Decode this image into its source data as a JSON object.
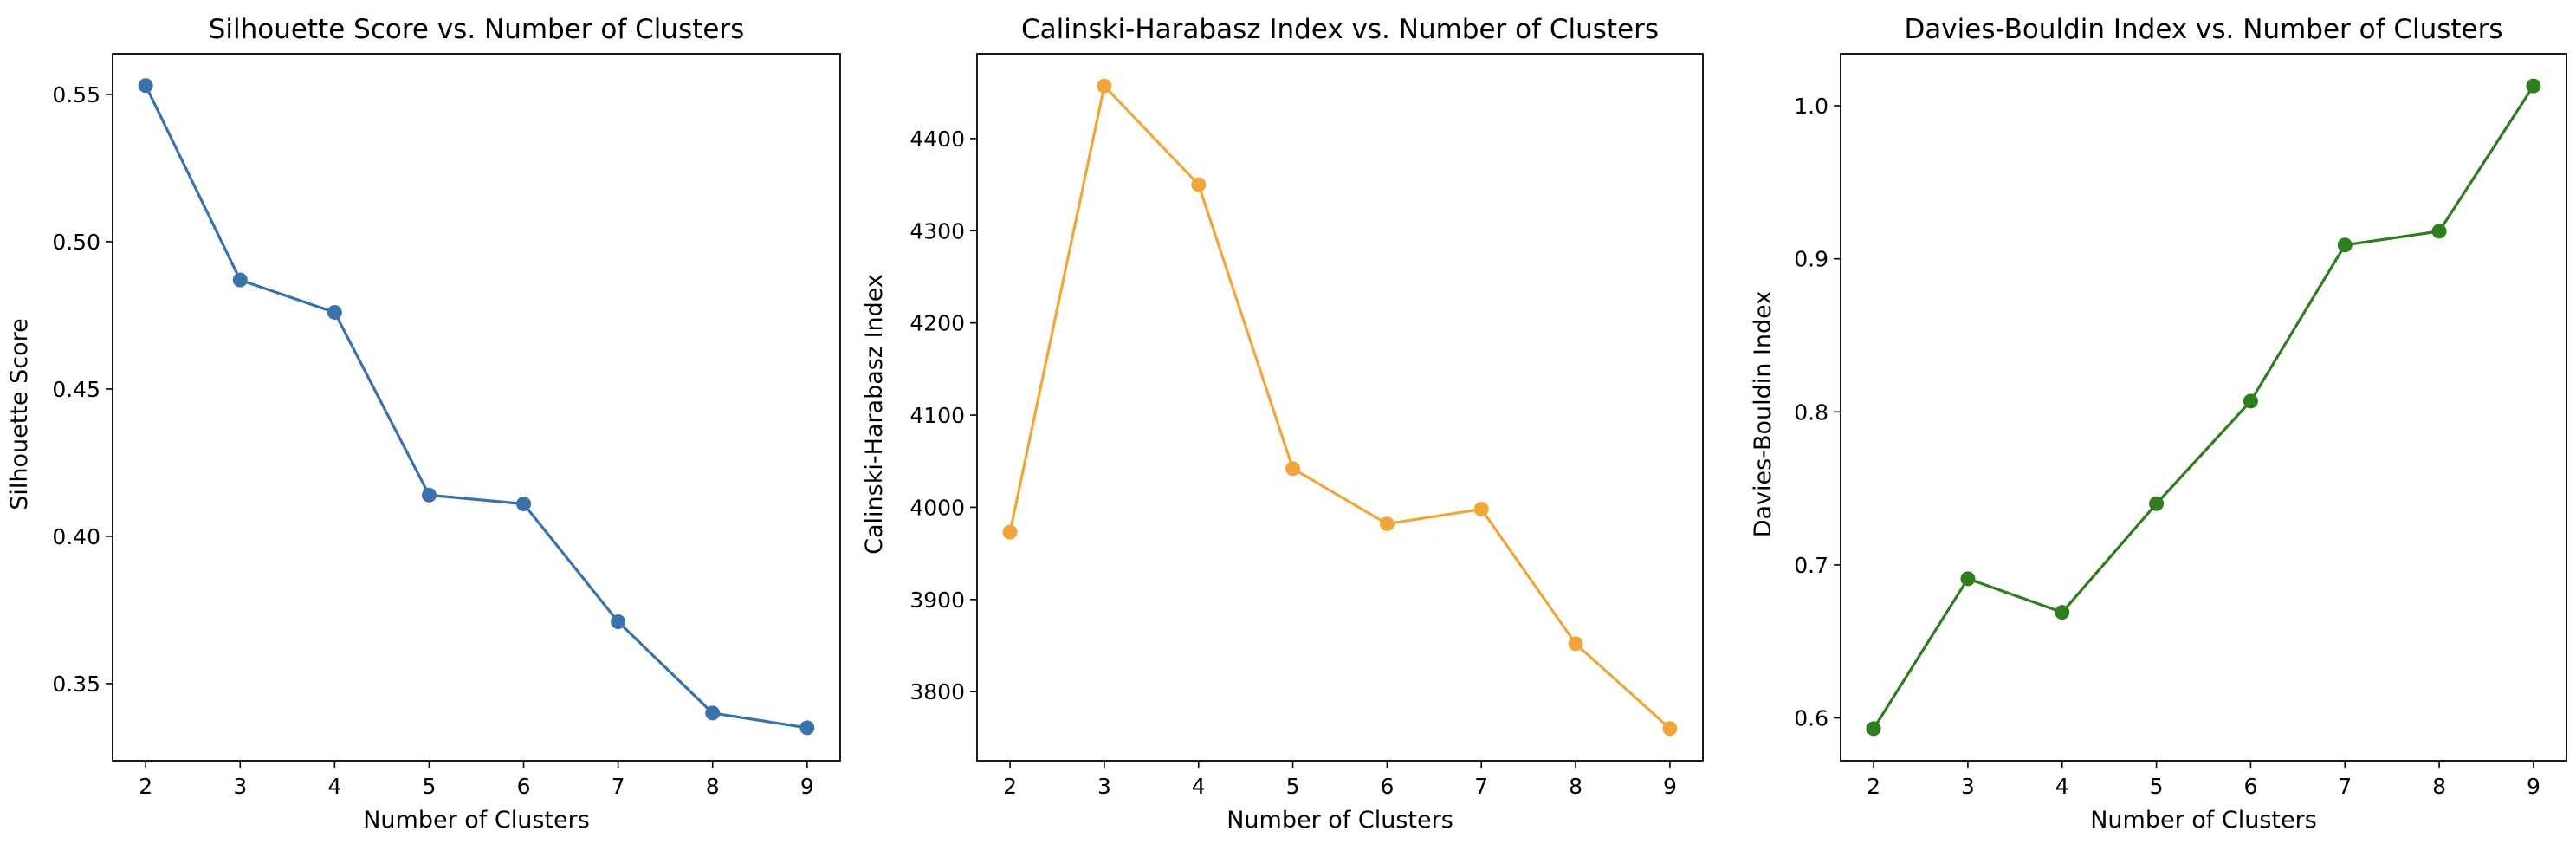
{
  "chart_data": [
    {
      "type": "line",
      "title": "Silhouette Score vs. Number of Clusters",
      "xlabel": "Number of Clusters",
      "ylabel": "Silhouette Score",
      "x": [
        2,
        3,
        4,
        5,
        6,
        7,
        8,
        9
      ],
      "y": [
        0.553,
        0.487,
        0.476,
        0.414,
        0.411,
        0.371,
        0.34,
        0.335
      ],
      "xlim": [
        1.65,
        9.35
      ],
      "ylim": [
        0.3238,
        0.5638
      ],
      "xticks": [
        2,
        3,
        4,
        5,
        6,
        7,
        8,
        9
      ],
      "yticks": [
        0.35,
        0.4,
        0.45,
        0.5,
        0.55
      ],
      "ytick_labels": [
        "0.35",
        "0.40",
        "0.45",
        "0.50",
        "0.55"
      ],
      "color": "#3a72ab",
      "grid": false,
      "marker": "circle"
    },
    {
      "type": "line",
      "title": "Calinski-Harabasz Index vs. Number of Clusters",
      "xlabel": "Number of Clusters",
      "ylabel": "Calinski-Harabasz Index",
      "x": [
        2,
        3,
        4,
        5,
        6,
        7,
        8,
        9
      ],
      "y": [
        3973,
        4457,
        4350,
        4042,
        3982,
        3998,
        3852,
        3760
      ],
      "xlim": [
        1.65,
        9.35
      ],
      "ylim": [
        3725,
        4492
      ],
      "xticks": [
        2,
        3,
        4,
        5,
        6,
        7,
        8,
        9
      ],
      "yticks": [
        3800,
        3900,
        4000,
        4100,
        4200,
        4300,
        4400
      ],
      "ytick_labels": [
        "3800",
        "3900",
        "4000",
        "4100",
        "4200",
        "4300",
        "4400"
      ],
      "color": "#f0a63a",
      "grid": false,
      "marker": "circle"
    },
    {
      "type": "line",
      "title": "Davies-Bouldin Index vs. Number of Clusters",
      "xlabel": "Number of Clusters",
      "ylabel": "Davies-Bouldin Index",
      "x": [
        2,
        3,
        4,
        5,
        6,
        7,
        8,
        9
      ],
      "y": [
        0.593,
        0.691,
        0.669,
        0.74,
        0.807,
        0.909,
        0.918,
        1.013
      ],
      "xlim": [
        1.65,
        9.35
      ],
      "ylim": [
        0.572,
        1.034
      ],
      "xticks": [
        2,
        3,
        4,
        5,
        6,
        7,
        8,
        9
      ],
      "yticks": [
        0.6,
        0.7,
        0.8,
        0.9,
        1.0
      ],
      "ytick_labels": [
        "0.6",
        "0.7",
        "0.8",
        "0.9",
        "1.0"
      ],
      "color": "#2f7d1f",
      "grid": false,
      "marker": "circle"
    }
  ]
}
